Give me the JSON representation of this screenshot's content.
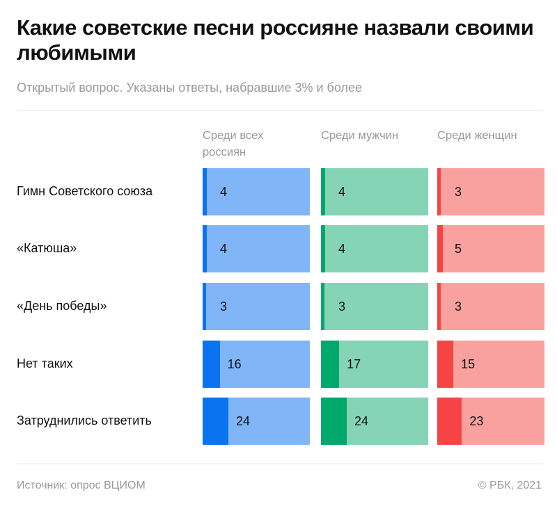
{
  "title": "Какие советские песни россияне назвали своими любимыми",
  "subtitle": "Открытый вопрос. Указаны ответы, набравшие 3% и более",
  "source": "Источник: опрос ВЦИОМ",
  "copyright": "© РБК, 2021",
  "chart_data": {
    "type": "bar",
    "categories": [
      "Гимн Советского союза",
      "«Катюша»",
      "«День победы»",
      "Нет таких",
      "Затруднились ответить"
    ],
    "series": [
      {
        "name": "Среди всех россиян",
        "values": [
          4,
          4,
          3,
          16,
          24
        ],
        "color": "#0a74f0",
        "bg": "#80b5f7"
      },
      {
        "name": "Среди мужчин",
        "values": [
          4,
          4,
          3,
          17,
          24
        ],
        "color": "#00a86b",
        "bg": "#84d4b5"
      },
      {
        "name": "Среди женщин",
        "values": [
          3,
          5,
          3,
          15,
          23
        ],
        "color": "#f64444",
        "bg": "#f8a19f"
      }
    ],
    "ylim": [
      0,
      100
    ]
  }
}
